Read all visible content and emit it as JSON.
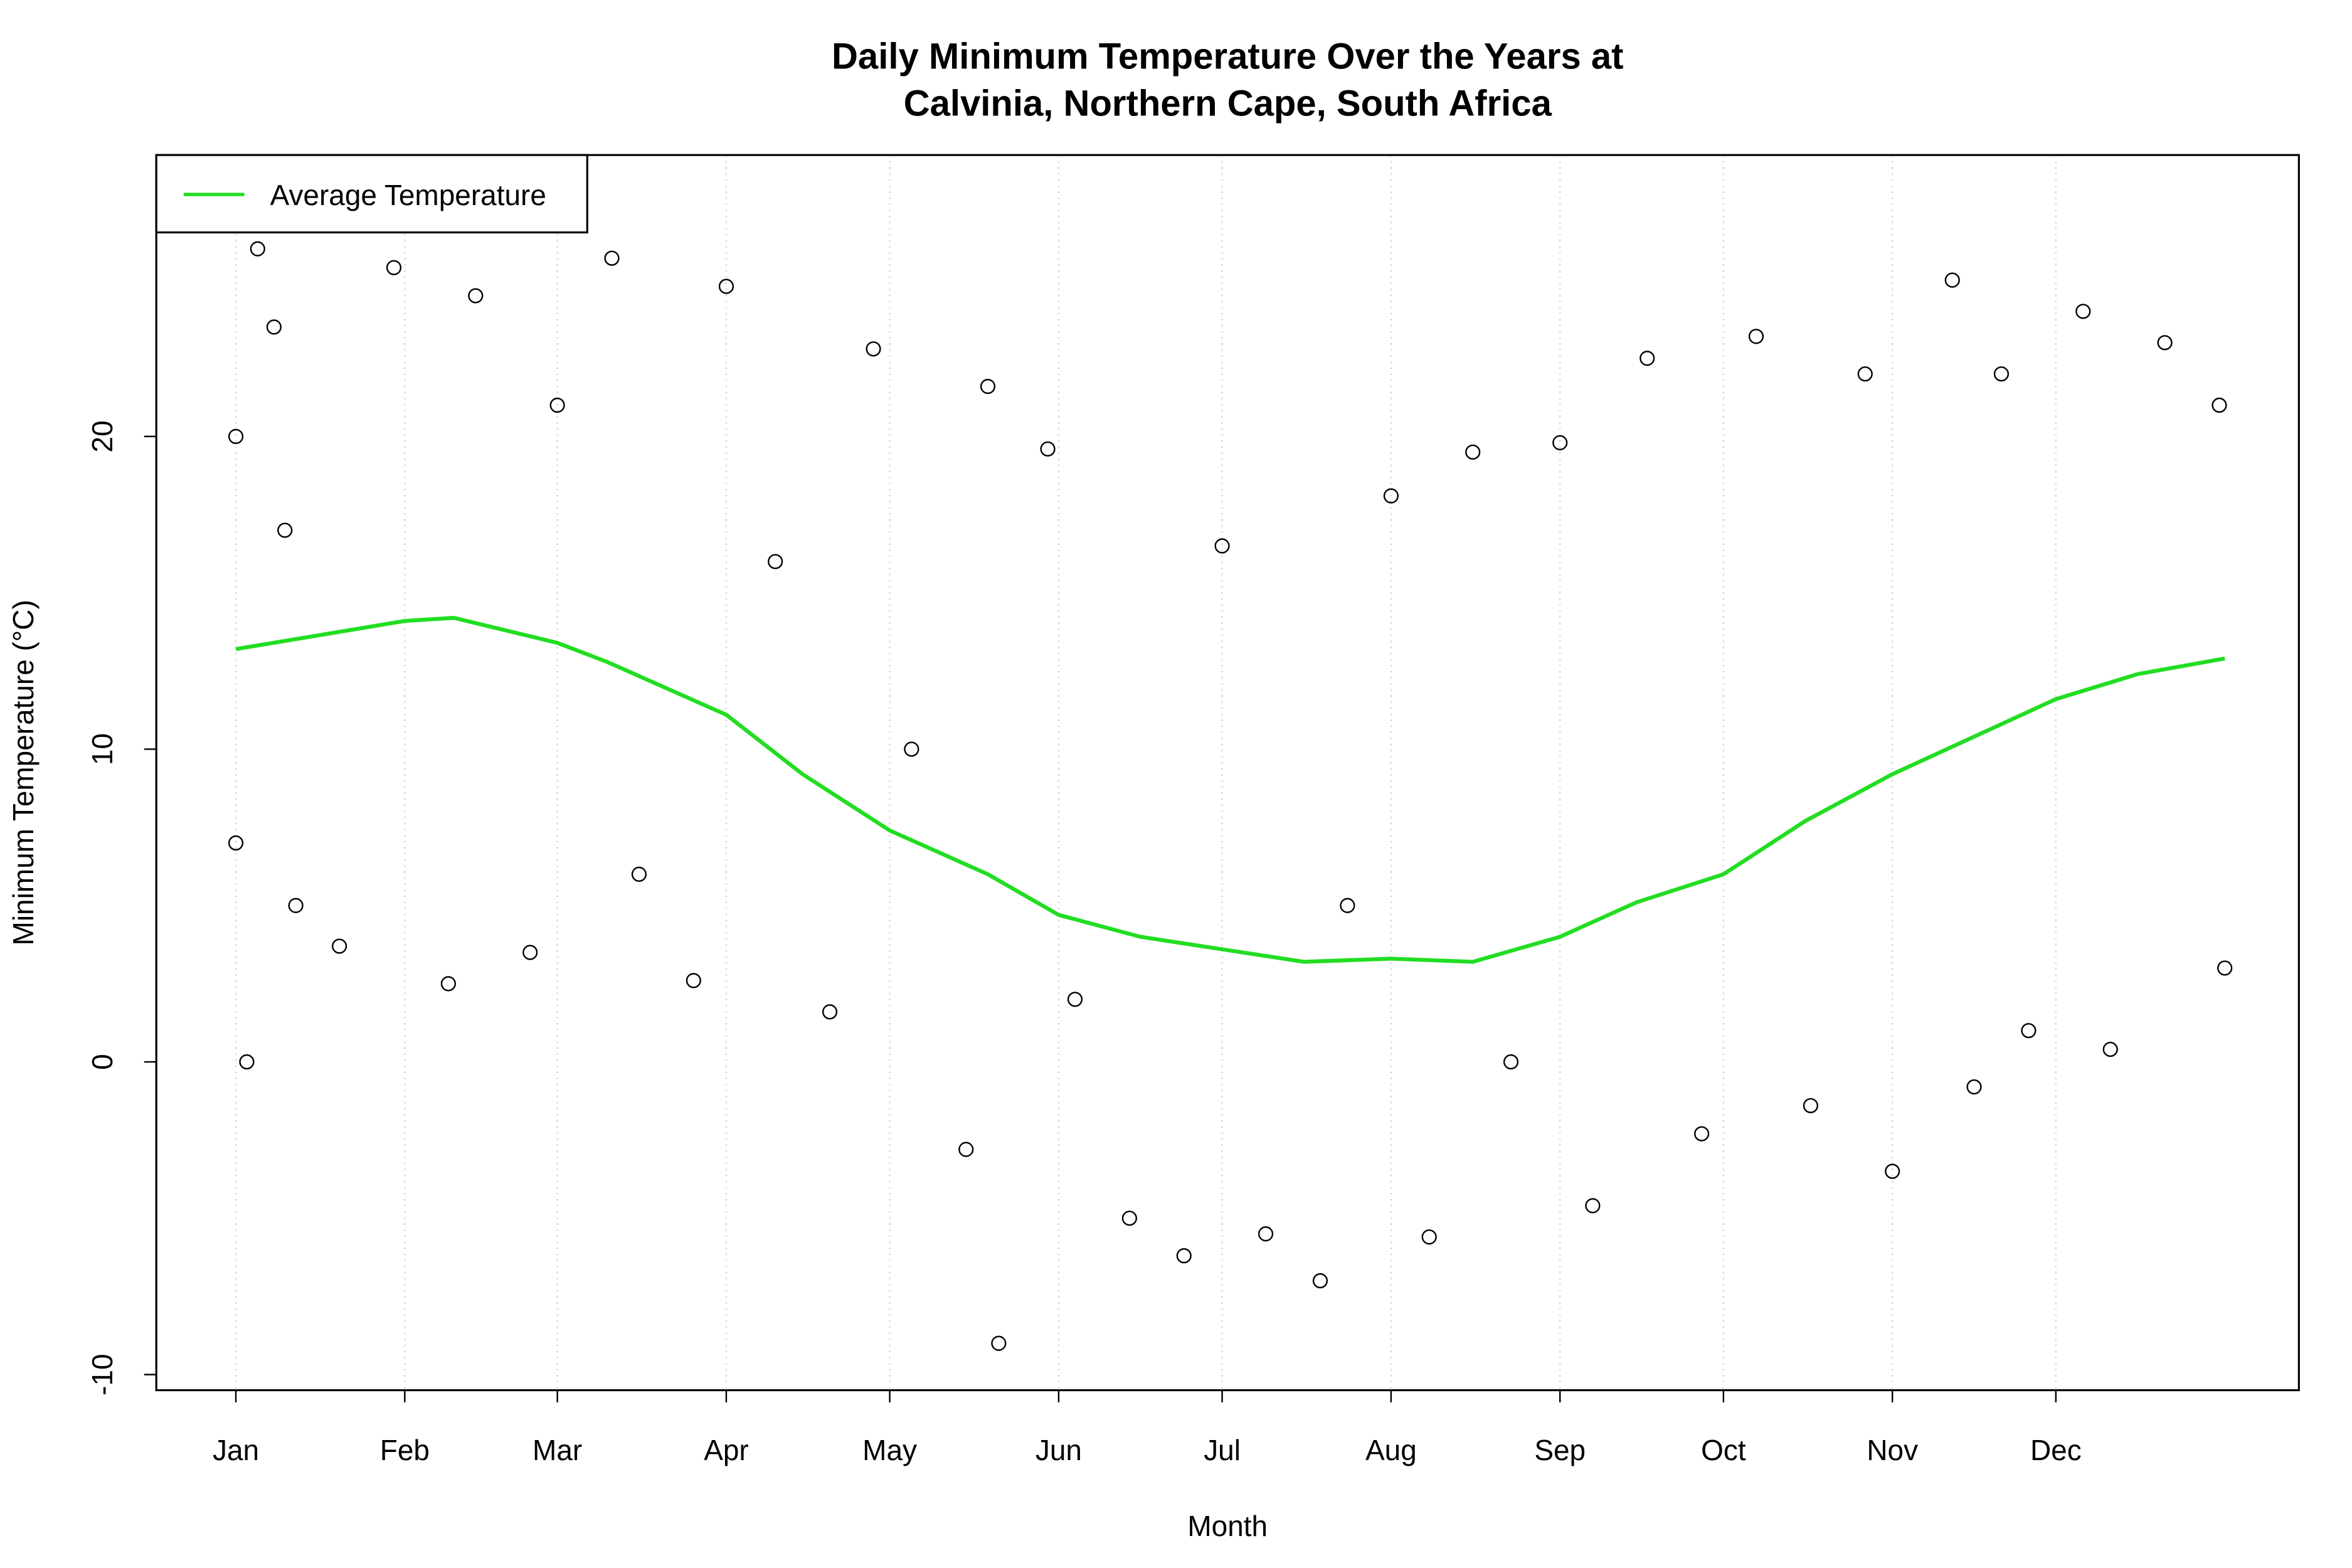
{
  "chart_data": {
    "type": "line",
    "title": [
      "Daily Minimum Temperature Over the Years at",
      "Calvinia, Northern Cape, South Africa"
    ],
    "x_label": "Month",
    "y_label": "Minimum Temperature (°C)",
    "xlim": [
      -13.6,
      379.6
    ],
    "ylim": [
      -10.5,
      29
    ],
    "xticks": [
      {
        "value": 1,
        "label": "Jan"
      },
      {
        "value": 32,
        "label": "Feb"
      },
      {
        "value": 60,
        "label": "Mar"
      },
      {
        "value": 91,
        "label": "Apr"
      },
      {
        "value": 121,
        "label": "May"
      },
      {
        "value": 152,
        "label": "Jun"
      },
      {
        "value": 182,
        "label": "Jul"
      },
      {
        "value": 213,
        "label": "Aug"
      },
      {
        "value": 244,
        "label": "Sep"
      },
      {
        "value": 274,
        "label": "Oct"
      },
      {
        "value": 305,
        "label": "Nov"
      },
      {
        "value": 335,
        "label": "Dec"
      }
    ],
    "yticks": [
      -10,
      0,
      10,
      20
    ],
    "grid": true,
    "legend": "topleft",
    "series": [
      {
        "name": "Average Temperature",
        "color": "#22dd22",
        "x": [
          1,
          32,
          41,
          60,
          69,
          91,
          105,
          121,
          139,
          152,
          167,
          182,
          197,
          213,
          228,
          244,
          258,
          274,
          289,
          305,
          320,
          335,
          350,
          366
        ],
        "values": [
          13.2,
          14.1,
          14.2,
          13.4,
          12.8,
          11.1,
          9.2,
          7.4,
          6.0,
          4.7,
          4.0,
          3.6,
          3.2,
          3.3,
          3.2,
          4.0,
          5.1,
          6.0,
          7.7,
          9.2,
          10.4,
          11.6,
          12.4,
          12.9
        ]
      }
    ],
    "points": {
      "color": "#000000",
      "x": [
        1,
        1,
        3,
        5,
        8,
        10,
        12,
        20,
        30,
        40,
        45,
        55,
        60,
        70,
        75,
        85,
        91,
        100,
        110,
        118,
        125,
        135,
        139,
        141,
        150,
        155,
        165,
        175,
        182,
        190,
        200,
        205,
        213,
        220,
        228,
        235,
        244,
        250,
        260,
        270,
        280,
        290,
        300,
        305,
        316,
        320,
        325,
        330,
        340,
        345,
        355,
        365,
        366
      ],
      "values": [
        20,
        7,
        0,
        26,
        23.5,
        17,
        5,
        3.7,
        25.4,
        2.5,
        24.5,
        3.5,
        21,
        25.7,
        6,
        2.6,
        24.8,
        16,
        1.6,
        22.8,
        10,
        -2.8,
        21.6,
        -9,
        19.6,
        2,
        -5,
        -6.2,
        16.5,
        -5.5,
        -7,
        5,
        18.1,
        -5.6,
        19.5,
        0,
        19.8,
        -4.6,
        22.5,
        -2.3,
        23.2,
        -1.4,
        22,
        -3.5,
        25,
        -0.8,
        22,
        1,
        24,
        0.4,
        23,
        21,
        3
      ]
    }
  }
}
